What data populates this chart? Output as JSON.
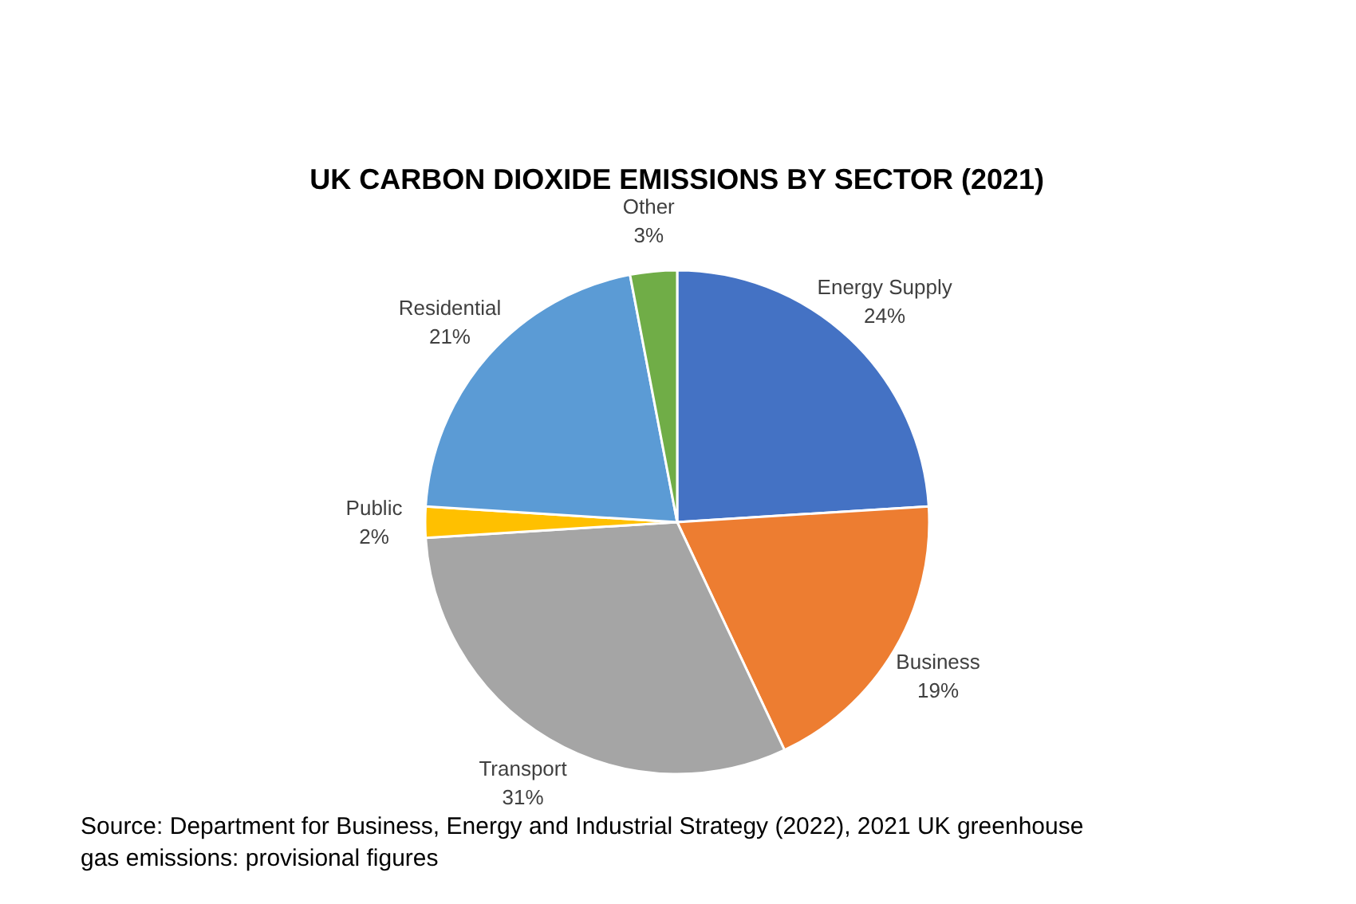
{
  "chart_data": {
    "type": "pie",
    "title": "UK CARBON DIOXIDE EMISSIONS BY SECTOR (2021)",
    "categories": [
      "Energy Supply",
      "Business",
      "Transport",
      "Public",
      "Residential",
      "Other"
    ],
    "values": [
      24,
      19,
      31,
      2,
      21,
      3
    ],
    "colors": [
      "#4472c4",
      "#ed7d31",
      "#a5a5a5",
      "#ffc000",
      "#5b9bd5",
      "#70ad47"
    ],
    "value_labels": [
      "24%",
      "19%",
      "31%",
      "2%",
      "21%",
      "3%"
    ],
    "annotations": [
      "Source: Department for Business, Energy and Industrial Strategy (2022), 2021 UK greenhouse gas emissions: provisional figures"
    ]
  }
}
